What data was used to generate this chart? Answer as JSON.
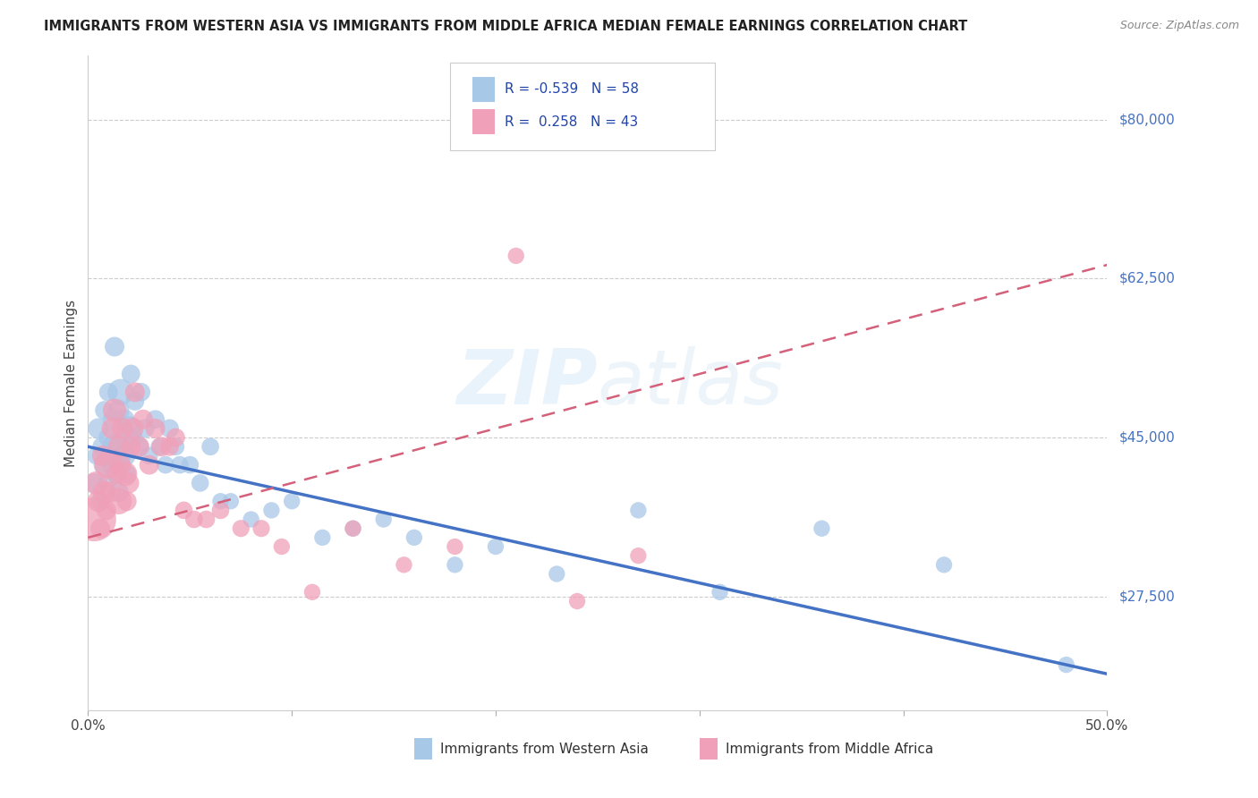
{
  "title": "IMMIGRANTS FROM WESTERN ASIA VS IMMIGRANTS FROM MIDDLE AFRICA MEDIAN FEMALE EARNINGS CORRELATION CHART",
  "source": "Source: ZipAtlas.com",
  "ylabel": "Median Female Earnings",
  "ylim": [
    15000,
    87000
  ],
  "xlim": [
    0.0,
    0.5
  ],
  "watermark_zip": "ZIP",
  "watermark_atlas": "atlas",
  "color_blue": "#a8c8e8",
  "color_pink": "#f0a0b8",
  "line_blue": "#4472c4",
  "line_pink": "#d4607a",
  "background_color": "#ffffff",
  "grid_color": "#cccccc",
  "right_labels": [
    [
      "$80,000",
      80000
    ],
    [
      "$62,500",
      62500
    ],
    [
      "$45,000",
      45000
    ],
    [
      "$27,500",
      27500
    ]
  ],
  "blue_line_x": [
    0.0,
    0.5
  ],
  "blue_line_y": [
    44000,
    19000
  ],
  "pink_line_x": [
    0.0,
    0.5
  ],
  "pink_line_y": [
    34000,
    64000
  ],
  "blue_x": [
    0.003,
    0.004,
    0.005,
    0.006,
    0.007,
    0.008,
    0.008,
    0.009,
    0.01,
    0.01,
    0.011,
    0.012,
    0.012,
    0.013,
    0.013,
    0.014,
    0.015,
    0.015,
    0.016,
    0.016,
    0.017,
    0.018,
    0.018,
    0.019,
    0.02,
    0.021,
    0.022,
    0.023,
    0.025,
    0.026,
    0.028,
    0.03,
    0.033,
    0.035,
    0.038,
    0.04,
    0.043,
    0.045,
    0.05,
    0.055,
    0.06,
    0.065,
    0.07,
    0.08,
    0.09,
    0.1,
    0.115,
    0.13,
    0.145,
    0.16,
    0.18,
    0.2,
    0.23,
    0.27,
    0.31,
    0.36,
    0.42,
    0.48
  ],
  "blue_y": [
    40000,
    43000,
    46000,
    38000,
    44000,
    42000,
    48000,
    40000,
    45000,
    50000,
    43000,
    47000,
    42000,
    55000,
    44000,
    41000,
    48000,
    39000,
    50000,
    43000,
    45000,
    43000,
    47000,
    41000,
    46000,
    52000,
    45000,
    49000,
    44000,
    50000,
    46000,
    43000,
    47000,
    44000,
    42000,
    46000,
    44000,
    42000,
    42000,
    40000,
    44000,
    38000,
    38000,
    36000,
    37000,
    38000,
    34000,
    35000,
    36000,
    34000,
    31000,
    33000,
    30000,
    37000,
    28000,
    35000,
    31000,
    20000
  ],
  "blue_sizes": [
    50,
    40,
    55,
    45,
    50,
    60,
    45,
    40,
    50,
    45,
    55,
    50,
    60,
    50,
    80,
    45,
    60,
    50,
    90,
    55,
    50,
    60,
    50,
    45,
    80,
    45,
    50,
    45,
    50,
    45,
    45,
    40,
    45,
    40,
    40,
    45,
    40,
    40,
    40,
    40,
    40,
    35,
    35,
    35,
    35,
    35,
    35,
    35,
    35,
    35,
    35,
    35,
    35,
    35,
    35,
    35,
    35,
    35
  ],
  "pink_x": [
    0.003,
    0.004,
    0.005,
    0.006,
    0.007,
    0.008,
    0.009,
    0.01,
    0.011,
    0.012,
    0.013,
    0.014,
    0.015,
    0.015,
    0.016,
    0.017,
    0.018,
    0.019,
    0.02,
    0.021,
    0.022,
    0.023,
    0.025,
    0.027,
    0.03,
    0.033,
    0.036,
    0.04,
    0.043,
    0.047,
    0.052,
    0.058,
    0.065,
    0.075,
    0.085,
    0.095,
    0.11,
    0.13,
    0.155,
    0.18,
    0.21,
    0.24,
    0.27
  ],
  "pink_y": [
    36000,
    40000,
    38000,
    35000,
    43000,
    39000,
    37000,
    42000,
    39000,
    46000,
    48000,
    41000,
    44000,
    38000,
    42000,
    46000,
    41000,
    38000,
    40000,
    44000,
    46000,
    50000,
    44000,
    47000,
    42000,
    46000,
    44000,
    44000,
    45000,
    37000,
    36000,
    36000,
    37000,
    35000,
    35000,
    33000,
    28000,
    35000,
    31000,
    33000,
    65000,
    27000,
    32000
  ],
  "pink_sizes": [
    250,
    70,
    60,
    50,
    55,
    65,
    50,
    100,
    55,
    60,
    70,
    55,
    60,
    90,
    55,
    60,
    80,
    50,
    55,
    50,
    60,
    50,
    55,
    50,
    50,
    50,
    50,
    45,
    45,
    40,
    40,
    40,
    40,
    38,
    38,
    35,
    35,
    35,
    35,
    35,
    35,
    35,
    35
  ]
}
